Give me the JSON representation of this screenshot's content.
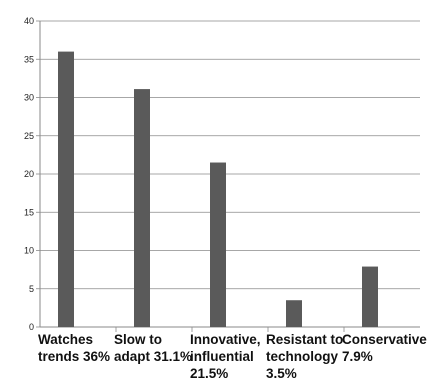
{
  "chart_data": {
    "type": "bar",
    "title": "",
    "xlabel": "",
    "ylabel": "",
    "ylim": [
      0,
      40
    ],
    "yticks": [
      0,
      5,
      10,
      15,
      20,
      25,
      30,
      35,
      40
    ],
    "grid": true,
    "legend": "none",
    "categories": [
      [
        "Watches",
        "trends 36%"
      ],
      [
        "Slow to",
        "adapt 31.1%"
      ],
      [
        "Innovative,",
        "influential",
        "21.5%"
      ],
      [
        "Resistant to",
        "technology",
        "3.5%"
      ],
      [
        "Conservative",
        "7.9%"
      ]
    ],
    "values": [
      36,
      31.1,
      21.5,
      3.5,
      7.9
    ],
    "colors": {
      "bar": "#5a5a5a",
      "grid": "#8a8a8a",
      "axis": "#8a8a8a"
    }
  }
}
